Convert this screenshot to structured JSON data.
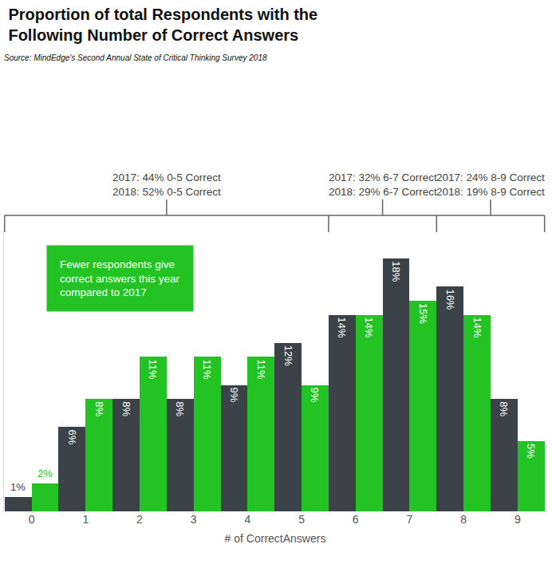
{
  "chart_data": {
    "type": "bar",
    "title": [
      "Proportion of total Respondents with the",
      "Following Number of Correct Answers"
    ],
    "subtitle": "Source: MindEdge's Second Annual State of Critical Thinking Survey 2018",
    "x_label": "# of CorrectAnswers",
    "categories": [
      "0",
      "1",
      "2",
      "3",
      "4",
      "5",
      "6",
      "7",
      "8",
      "9"
    ],
    "series": [
      {
        "color": "#3c4348",
        "values": [
          1,
          6,
          8,
          8,
          9,
          12,
          14,
          18,
          16,
          8
        ],
        "value_labels": [
          "1%",
          "6%",
          "8%",
          "8%",
          "9%",
          "12%",
          "14%",
          "18%",
          "16%",
          "8%"
        ]
      },
      {
        "color": "#22c322",
        "values": [
          2,
          8,
          11,
          11,
          11,
          9,
          14,
          15,
          14,
          5
        ],
        "value_labels": [
          "2%",
          "8%",
          "11%",
          "11%",
          "11%",
          "9%",
          "14%",
          "15%",
          "14%",
          "5%"
        ]
      }
    ],
    "ylim": [
      0,
      20
    ],
    "tick_labels": "x",
    "data_labels": true,
    "grid": false,
    "groups": [
      {
        "lines": [
          "2017: 44% 0-5 Correct",
          "2018: 52% 0-5 Correct"
        ],
        "span": [
          "0",
          "5"
        ]
      },
      {
        "lines": [
          "2017: 32% 6-7 Correct",
          "2018: 29% 6-7 Correct"
        ],
        "span": [
          "6",
          "7"
        ]
      },
      {
        "lines": [
          "2017: 24% 8-9 Correct",
          "2018: 19% 8-9 Correct"
        ],
        "span": [
          "8",
          "9"
        ]
      }
    ],
    "callout": {
      "lines": [
        "Fewer respondents give",
        "correct answers this year",
        "compared to 2017"
      ],
      "color": "#22c322"
    }
  }
}
